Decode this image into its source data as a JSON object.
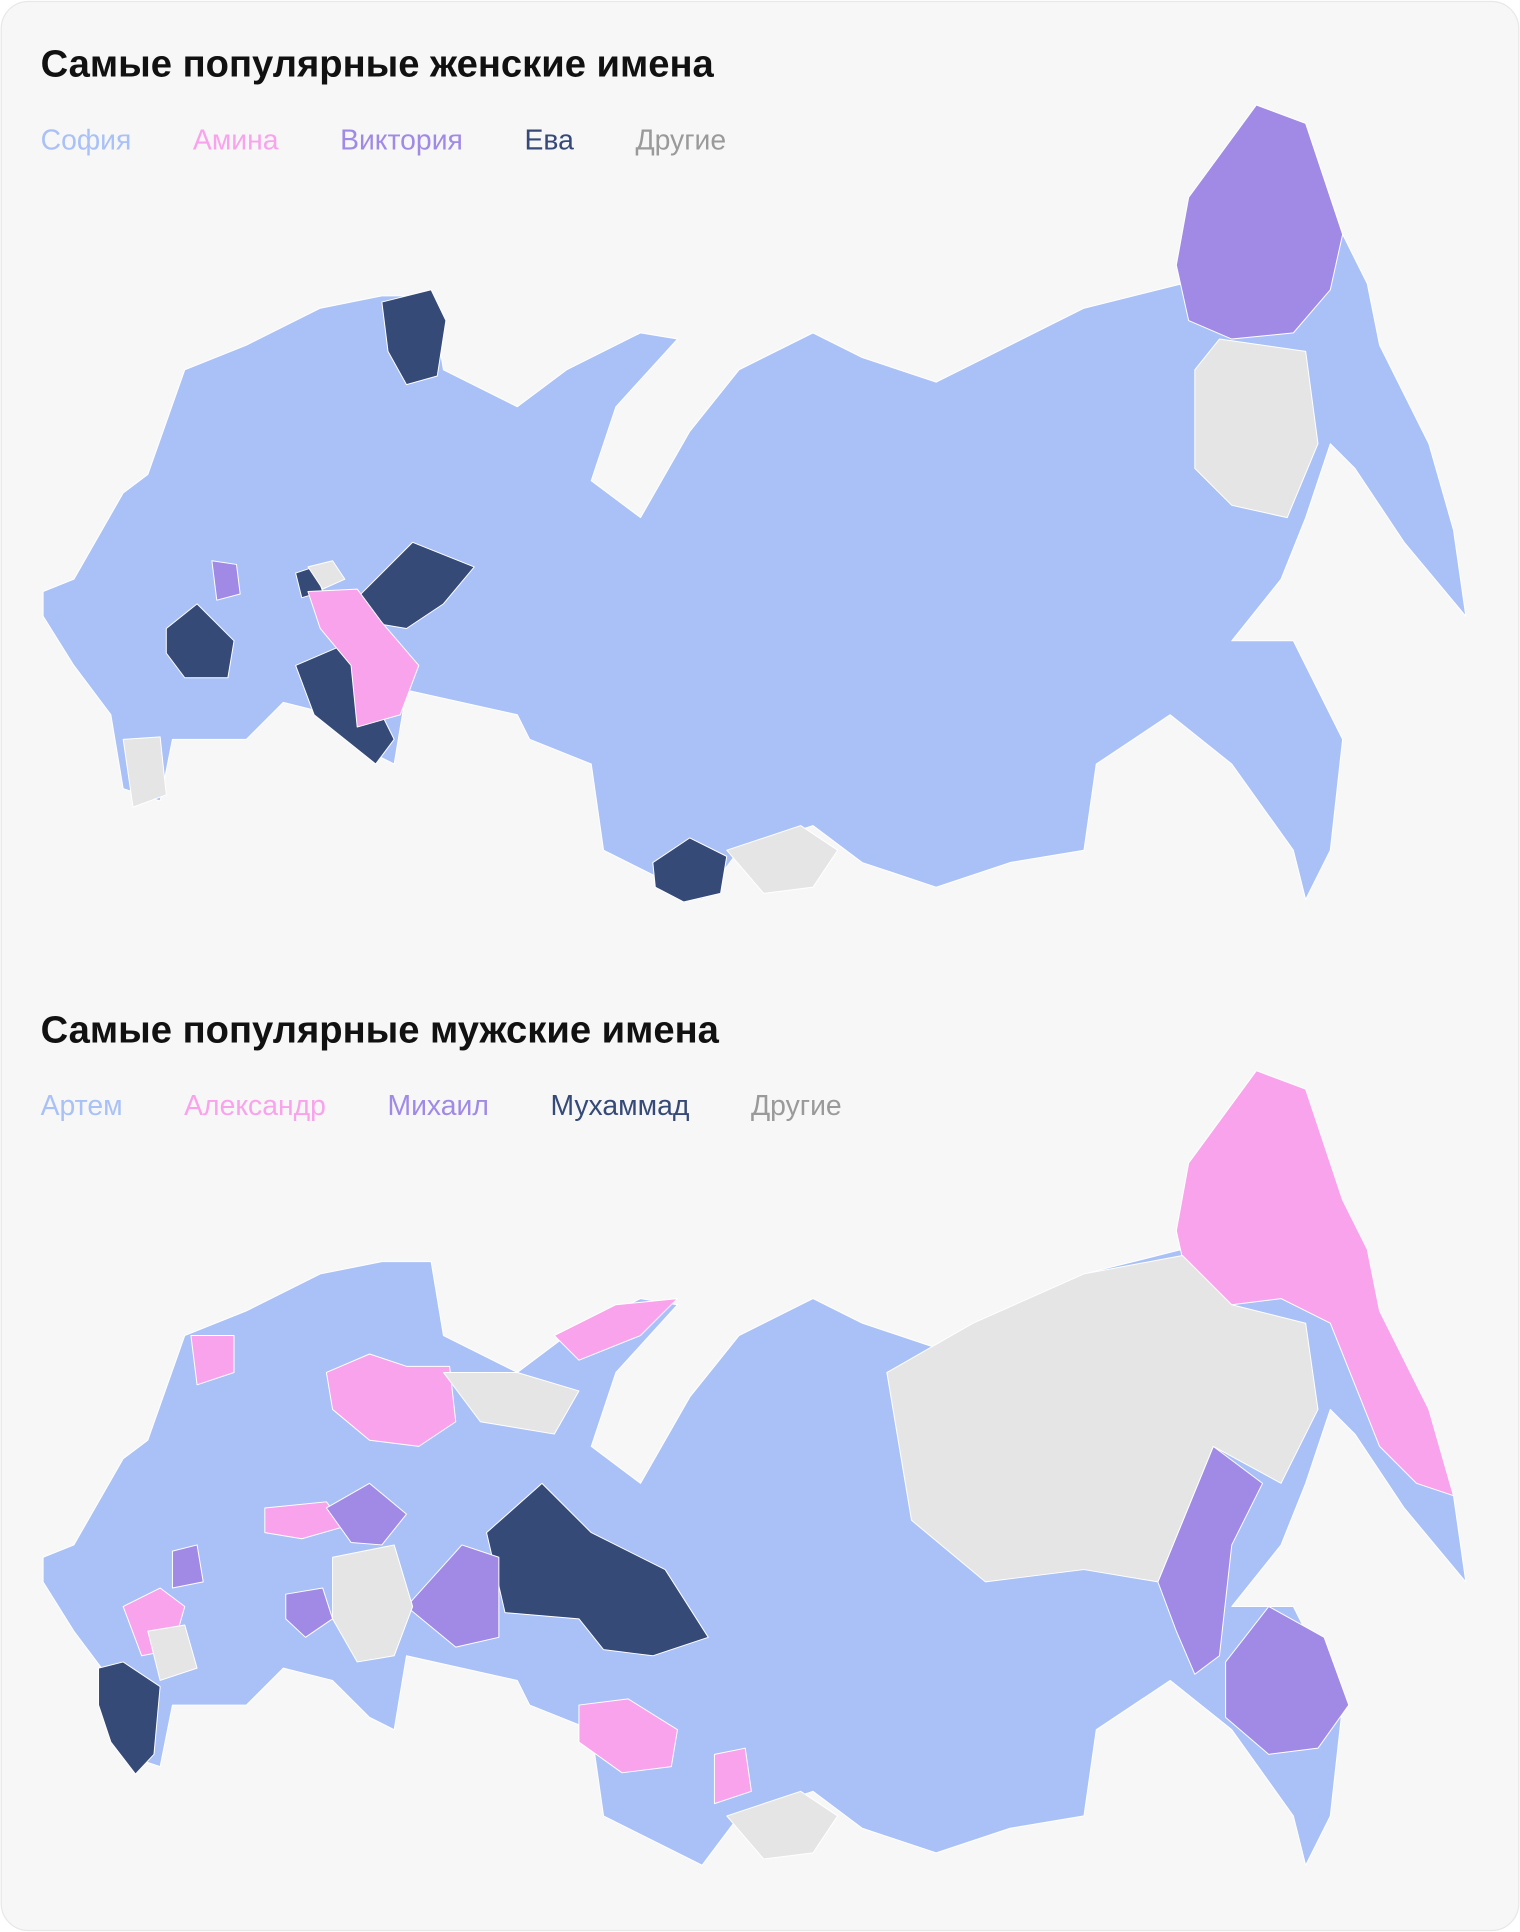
{
  "maps": [
    {
      "title": "Самые популярные женские имена",
      "legend": [
        {
          "label": "София",
          "color": "#a9c1f6"
        },
        {
          "label": "Амина",
          "color": "#f9a3ec"
        },
        {
          "label": "Виктория",
          "color": "#a08ae6"
        },
        {
          "label": "Ева",
          "color": "#364a78"
        },
        {
          "label": "Другие",
          "color": "#e5e5e5"
        }
      ]
    },
    {
      "title": "Самые популярные мужские имена",
      "legend": [
        {
          "label": "Артем",
          "color": "#a9c1f6"
        },
        {
          "label": "Александр",
          "color": "#f9a3ec"
        },
        {
          "label": "Михаил",
          "color": "#a08ae6"
        },
        {
          "label": "Мухаммад",
          "color": "#364a78"
        },
        {
          "label": "Другие",
          "color": "#e5e5e5"
        }
      ]
    }
  ]
}
